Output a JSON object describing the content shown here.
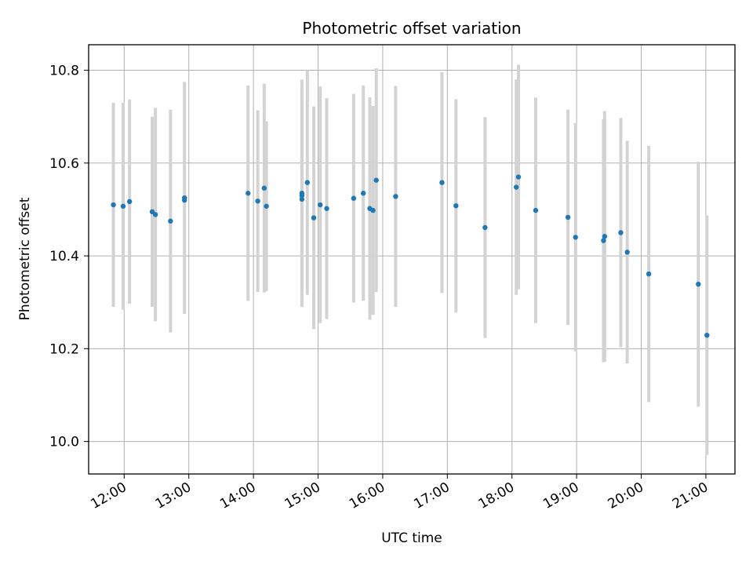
{
  "chart_data": {
    "type": "scatter",
    "title": "Photometric offset variation",
    "xlabel": "UTC time",
    "ylabel": "Photometric offset",
    "grid": true,
    "x_unit": "UTC time (HH:MM)",
    "xlim": [
      "11:27",
      "21:27"
    ],
    "ylim": [
      9.93,
      10.855
    ],
    "x_ticks": [
      "12:00",
      "13:00",
      "14:00",
      "15:00",
      "16:00",
      "17:00",
      "18:00",
      "19:00",
      "20:00",
      "21:00"
    ],
    "y_ticks": [
      "10.0",
      "10.2",
      "10.4",
      "10.6",
      "10.8"
    ],
    "marker_color": "#1f77b4",
    "errorbar_color": "#d3d3d3",
    "points": [
      {
        "x": "11:50",
        "y": 10.51,
        "err": 0.22
      },
      {
        "x": "11:59",
        "y": 10.507,
        "err": 0.223
      },
      {
        "x": "12:05",
        "y": 10.517,
        "err": 0.22
      },
      {
        "x": "12:26",
        "y": 10.495,
        "err": 0.205
      },
      {
        "x": "12:29",
        "y": 10.489,
        "err": 0.23
      },
      {
        "x": "12:43",
        "y": 10.475,
        "err": 0.24
      },
      {
        "x": "12:56",
        "y": 10.525,
        "err": 0.25
      },
      {
        "x": "12:56",
        "y": 10.52,
        "err": 0.0
      },
      {
        "x": "13:55",
        "y": 10.535,
        "err": 0.232
      },
      {
        "x": "14:04",
        "y": 10.518,
        "err": 0.196
      },
      {
        "x": "14:10",
        "y": 10.546,
        "err": 0.225
      },
      {
        "x": "14:12",
        "y": 10.507,
        "err": 0.183
      },
      {
        "x": "14:45",
        "y": 10.535,
        "err": 0.245
      },
      {
        "x": "14:45",
        "y": 10.53,
        "err": 0.24
      },
      {
        "x": "14:45",
        "y": 10.522,
        "err": 0.2
      },
      {
        "x": "14:50",
        "y": 10.558,
        "err": 0.242
      },
      {
        "x": "14:56",
        "y": 10.482,
        "err": 0.24
      },
      {
        "x": "15:02",
        "y": 10.51,
        "err": 0.255
      },
      {
        "x": "15:08",
        "y": 10.502,
        "err": 0.238
      },
      {
        "x": "15:33",
        "y": 10.524,
        "err": 0.225
      },
      {
        "x": "15:42",
        "y": 10.535,
        "err": 0.232
      },
      {
        "x": "15:48",
        "y": 10.502,
        "err": 0.24
      },
      {
        "x": "15:51",
        "y": 10.498,
        "err": 0.225
      },
      {
        "x": "15:54",
        "y": 10.563,
        "err": 0.241
      },
      {
        "x": "16:12",
        "y": 10.528,
        "err": 0.238
      },
      {
        "x": "16:55",
        "y": 10.558,
        "err": 0.238
      },
      {
        "x": "17:08",
        "y": 10.508,
        "err": 0.23
      },
      {
        "x": "17:35",
        "y": 10.461,
        "err": 0.238
      },
      {
        "x": "18:04",
        "y": 10.548,
        "err": 0.232
      },
      {
        "x": "18:06",
        "y": 10.57,
        "err": 0.242
      },
      {
        "x": "18:22",
        "y": 10.498,
        "err": 0.243
      },
      {
        "x": "18:52",
        "y": 10.483,
        "err": 0.232
      },
      {
        "x": "18:59",
        "y": 10.44,
        "err": 0.246
      },
      {
        "x": "19:25",
        "y": 10.433,
        "err": 0.262
      },
      {
        "x": "19:26",
        "y": 10.442,
        "err": 0.27
      },
      {
        "x": "19:41",
        "y": 10.45,
        "err": 0.247
      },
      {
        "x": "19:47",
        "y": 10.408,
        "err": 0.24
      },
      {
        "x": "20:07",
        "y": 10.361,
        "err": 0.276
      },
      {
        "x": "20:53",
        "y": 10.339,
        "err": 0.264
      },
      {
        "x": "21:01",
        "y": 10.229,
        "err": 0.258
      }
    ]
  }
}
